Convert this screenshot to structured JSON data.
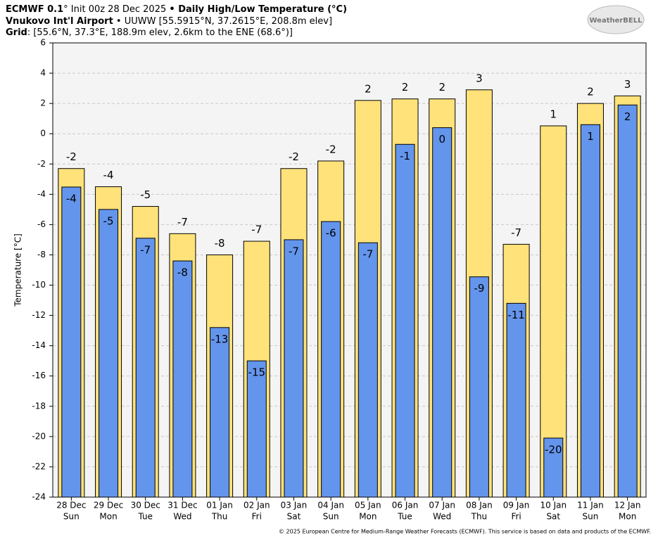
{
  "chart_data": {
    "type": "bar",
    "header": {
      "line1": [
        "ECMWF 0.1",
        "° Init 00z 28 Dec 2025 ",
        "• Daily High/Low Temperature (°C)"
      ],
      "line2": [
        "Vnukovo Int'l Airport",
        " • UUWW [55.5915°N, 37.2615°E, 208.8m elev]"
      ],
      "line3": [
        "Grid",
        ": [55.6°N, 37.3°E, 188.9m elev, 2.6km to the ENE (68.6°)]"
      ]
    },
    "logo": "WeatherBELL",
    "footer": "© 2025 European Centre for Medium-Range Weather Forecasts (ECMWF). This service is based on data and products of the ECMWF.",
    "y_label": "Temperature [°C]",
    "categories": [
      "28 Dec",
      "29 Dec",
      "30 Dec",
      "31 Dec",
      "01 Jan",
      "02 Jan",
      "03 Jan",
      "04 Jan",
      "05 Jan",
      "06 Jan",
      "07 Jan",
      "08 Jan",
      "09 Jan",
      "10 Jan",
      "11 Jan",
      "12 Jan"
    ],
    "weekdays": [
      "Sun",
      "Mon",
      "Tue",
      "Wed",
      "Thu",
      "Fri",
      "Sat",
      "Sun",
      "Mon",
      "Tue",
      "Wed",
      "Thu",
      "Fri",
      "Sat",
      "Sun",
      "Mon"
    ],
    "series": [
      {
        "color": "#ffe27a",
        "values": [
          -2.3,
          -3.5,
          -4.8,
          -6.6,
          -8.0,
          -7.1,
          -2.3,
          -1.8,
          2.2,
          2.3,
          2.3,
          2.9,
          -7.3,
          0.52,
          2.0,
          2.5
        ],
        "value_labels": [
          "-2",
          "-4",
          "-5",
          "-7",
          "-8",
          "-7",
          "-2",
          "-2",
          "2",
          "2",
          "2",
          "3",
          "-7",
          "1",
          "2",
          "3"
        ]
      },
      {
        "color": "#6495ed",
        "values": [
          -3.52,
          -5.0,
          -6.9,
          -8.4,
          -12.8,
          -15.0,
          -7.0,
          -5.8,
          -7.2,
          -0.7,
          0.4,
          -9.45,
          -11.2,
          -20.1,
          0.6,
          1.9
        ],
        "value_labels": [
          "-4",
          "-5",
          "-7",
          "-8",
          "-13",
          "-15",
          "-7",
          "-6",
          "-7",
          "-1",
          "0",
          "-9",
          "-11",
          "-20",
          "1",
          "2"
        ]
      }
    ],
    "ylim": [
      -24,
      6
    ],
    "yticks": [
      -24,
      -22,
      -20,
      -18,
      -16,
      -14,
      -12,
      -10,
      -8,
      -6,
      -4,
      -2,
      0,
      2,
      4,
      6
    ],
    "grid": true
  }
}
